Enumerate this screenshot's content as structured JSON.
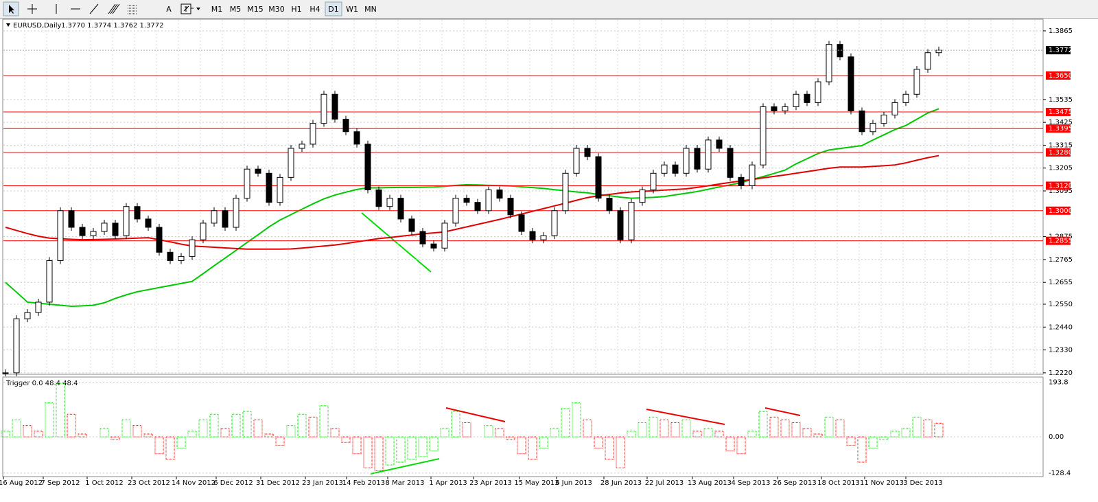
{
  "toolbar": {
    "text_tool": "A",
    "timeframes": [
      "M1",
      "M5",
      "M15",
      "M30",
      "H1",
      "H4",
      "D1",
      "W1",
      "MN"
    ],
    "active": "D1"
  },
  "chart": {
    "title": "EURUSD,Daily",
    "quote": "1.3770 1.3774 1.3762 1.3772",
    "ylim": [
      1.2213,
      1.3921
    ],
    "yticks": [
      1.3865,
      1.3535,
      1.3425,
      1.3315,
      1.3205,
      1.3095,
      1.2875,
      1.2765,
      1.2655,
      {
        "value": 1.255,
        "label": "1.2550"
      },
      {
        "value": 1.244,
        "label": "1.2440"
      },
      {
        "value": 1.233,
        "label": "1.2330"
      },
      {
        "value": 1.222,
        "label": "1.2220"
      }
    ],
    "levels": [
      {
        "value": 1.365,
        "label": "1.3650"
      },
      1.3475,
      1.3395,
      {
        "value": 1.328,
        "label": "1.3280"
      },
      {
        "value": 1.312,
        "label": "1.3120"
      },
      {
        "value": 1.3,
        "label": "1.3000"
      },
      1.2855
    ],
    "level_color": "#ff0000",
    "current": {
      "value": 1.3772,
      "label": "1.3772"
    },
    "closes": [
      1.222,
      1.248,
      1.251,
      1.256,
      1.276,
      1.3,
      1.292,
      1.288,
      1.29,
      1.294,
      1.288,
      1.302,
      1.296,
      1.292,
      1.28,
      1.276,
      1.278,
      1.286,
      1.294,
      1.3,
      1.292,
      1.306,
      1.32,
      1.318,
      1.304,
      1.316,
      1.33,
      1.332,
      1.342,
      1.356,
      1.344,
      1.338,
      1.332,
      1.31,
      1.302,
      1.306,
      1.296,
      1.29,
      1.284,
      1.282,
      1.294,
      1.306,
      1.304,
      1.3,
      1.31,
      1.306,
      1.298,
      1.29,
      1.286,
      1.288,
      1.3,
      1.318,
      1.33,
      1.326,
      1.306,
      1.3,
      1.286,
      1.304,
      1.31,
      1.318,
      1.322,
      1.318,
      1.33,
      1.32,
      1.334,
      1.33,
      1.316,
      1.312,
      1.322,
      1.35,
      1.348,
      1.35,
      1.356,
      1.352,
      1.362,
      1.38,
      1.374,
      1.348,
      1.338,
      1.342,
      1.346,
      1.352,
      1.356,
      1.368,
      1.376,
      1.3772
    ],
    "ma_lines": [
      {
        "color": "#00c800",
        "values": [
          1.2655,
          1.2608,
          1.256,
          1.2555,
          1.255,
          1.2545,
          1.254,
          1.2542,
          1.2545,
          1.2557,
          1.2578,
          1.2595,
          1.261,
          1.262,
          1.263,
          1.264,
          1.265,
          1.266,
          1.2697,
          1.2735,
          1.2772,
          1.2809,
          1.2847,
          1.2884,
          1.2922,
          1.2955,
          1.2981,
          1.3007,
          1.3033,
          1.3057,
          1.3075,
          1.3089,
          1.3102,
          1.311,
          1.311,
          1.3111,
          1.3112,
          1.3112,
          1.3113,
          1.3114,
          1.3117,
          1.3122,
          1.3125,
          1.3124,
          1.3122,
          1.3121,
          1.3119,
          1.3115,
          1.3111,
          1.3107,
          1.3101,
          1.3096,
          1.309,
          1.3086,
          1.3078,
          1.3072,
          1.3065,
          1.306,
          1.3062,
          1.3064,
          1.3068,
          1.3076,
          1.3084,
          1.3092,
          1.3103,
          1.3114,
          1.3124,
          1.3135,
          1.315,
          1.3164,
          1.3179,
          1.3195,
          1.3225,
          1.325,
          1.3275,
          1.3292,
          1.3299,
          1.3306,
          1.3313,
          1.334,
          1.3365,
          1.339,
          1.341,
          1.344,
          1.347,
          1.349
        ]
      },
      {
        "color": "#e00000",
        "values": [
          1.292,
          1.2905,
          1.289,
          1.2877,
          1.2868,
          1.2865,
          1.2862,
          1.286,
          1.2861,
          1.2862,
          1.2864,
          1.2866,
          1.2868,
          1.287,
          1.286,
          1.285,
          1.2839,
          1.283,
          1.2827,
          1.2824,
          1.2821,
          1.2818,
          1.2815,
          1.2815,
          1.2815,
          1.2815,
          1.2816,
          1.282,
          1.2825,
          1.283,
          1.2835,
          1.2842,
          1.285,
          1.2858,
          1.2866,
          1.2871,
          1.2877,
          1.2883,
          1.2889,
          1.2893,
          1.2898,
          1.291,
          1.2922,
          1.2934,
          1.2946,
          1.2958,
          1.2971,
          1.2984,
          1.2997,
          1.301,
          1.3023,
          1.3036,
          1.305,
          1.3063,
          1.3072,
          1.3078,
          1.3085,
          1.309,
          1.3093,
          1.3096,
          1.3099,
          1.3102,
          1.3105,
          1.3112,
          1.312,
          1.3128,
          1.3136,
          1.3143,
          1.315,
          1.3158,
          1.3165,
          1.3172,
          1.318,
          1.3188,
          1.3196,
          1.3204,
          1.321,
          1.321,
          1.321,
          1.3213,
          1.3216,
          1.322,
          1.323,
          1.3243,
          1.3255,
          1.3265
        ]
      }
    ],
    "xlabels": [
      "16 Aug 2012",
      "7 Sep 2012",
      "1 Oct 2012",
      "23 Oct 2012",
      "14 Nov 2012",
      "6 Dec 2012",
      "31 Dec 2012",
      "23 Jan 2013",
      "14 Feb 2013",
      "8 Mar 2013",
      "1 Apr 2013",
      "23 Apr 2013",
      "15 May 2013",
      "6 Jun 2013",
      "28 Jun 2013",
      "22 Jul 2013",
      "13 Aug 2013",
      "4 Sep 2013",
      "26 Sep 2013",
      "18 Oct 2013",
      "11 Nov 2013",
      "3 Dec 2013"
    ]
  },
  "indicator": {
    "title": "Trigger 0.0 48.4 48.4",
    "ylim": [
      -141,
      212
    ],
    "yticks": [
      193.8,
      {
        "value": 0,
        "label": "0.00"
      },
      -128.4
    ],
    "up_color": "#00dd00",
    "down_color": "#ee0000",
    "values": [
      20,
      60,
      40,
      20,
      120,
      190,
      80,
      10,
      0,
      30,
      -10,
      60,
      40,
      10,
      -60,
      -80,
      -40,
      20,
      60,
      80,
      30,
      80,
      90,
      60,
      10,
      -30,
      40,
      80,
      70,
      110,
      30,
      -20,
      -60,
      -110,
      -120,
      -100,
      -90,
      -80,
      -70,
      -50,
      30,
      90,
      50,
      0,
      40,
      30,
      -10,
      -60,
      -80,
      -40,
      30,
      100,
      120,
      60,
      -40,
      -80,
      -110,
      20,
      50,
      70,
      60,
      50,
      60,
      20,
      30,
      20,
      -50,
      -60,
      20,
      90,
      70,
      60,
      50,
      30,
      10,
      70,
      60,
      -30,
      -90,
      -40,
      -10,
      20,
      30,
      70,
      60,
      48.4
    ]
  }
}
